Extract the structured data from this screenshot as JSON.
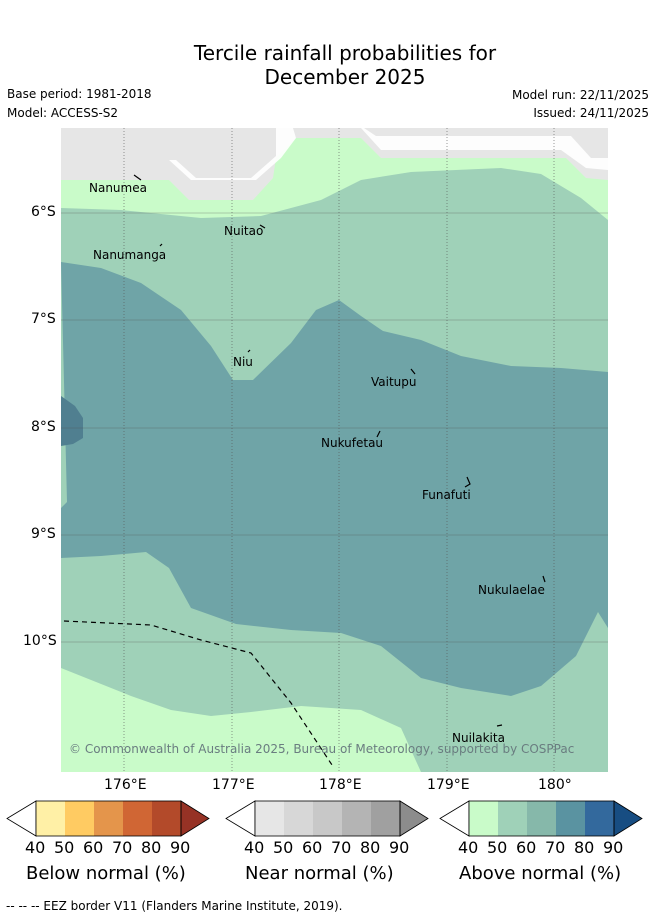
{
  "title": {
    "line1": "Tercile rainfall probabilities for",
    "line2": "December 2025"
  },
  "meta": {
    "base_period": "Base period: 1981-2018",
    "model": "Model: ACCESS-S2",
    "model_run": "Model run: 22/11/2025",
    "issued": "Issued: 24/11/2025"
  },
  "axes": {
    "lat_labels": [
      "6°S",
      "7°S",
      "8°S",
      "9°S",
      "10°S"
    ],
    "lon_labels": [
      "176°E",
      "177°E",
      "178°E",
      "179°E",
      "180°"
    ]
  },
  "places": [
    "Nanumea",
    "Nuitao",
    "Nanumanga",
    "Niu",
    "Vaitupu",
    "Nukufetau",
    "Funafuti",
    "Nukulaelae",
    "Nuilakita"
  ],
  "copyright": "© Commonwealth of Australia 2025, Bureau of Meteorology, supported by COSPPac",
  "colorbars": [
    {
      "label": "Below normal (%)",
      "ticks": [
        "40",
        "50",
        "60",
        "70",
        "80",
        "90"
      ],
      "colors": [
        "#fff0a6",
        "#ffcb62",
        "#e4954b",
        "#d06634",
        "#b34a2a",
        "#963225"
      ]
    },
    {
      "label": "Near normal (%)",
      "ticks": [
        "40",
        "50",
        "60",
        "70",
        "80",
        "90"
      ],
      "colors": [
        "#e6e6e6",
        "#d7d7d7",
        "#c8c8c8",
        "#b4b4b4",
        "#a0a0a0",
        "#8c8c8c"
      ]
    },
    {
      "label": "Above normal (%)",
      "ticks": [
        "40",
        "50",
        "60",
        "70",
        "80",
        "90"
      ],
      "colors": [
        "#c9fbc9",
        "#9fd1b8",
        "#86b8aa",
        "#5a93a1",
        "#33699d",
        "#174d82"
      ]
    }
  ],
  "map_colors": {
    "near_normal_40": "#e6e6e6",
    "above_40": "#c9fbc9",
    "above_50": "#9fd1b8",
    "above_60": "#6fa4a7",
    "above_70": "#507f90"
  },
  "footer": "--  --  -- EEZ border V11 (Flanders Marine Institute, 2019)."
}
